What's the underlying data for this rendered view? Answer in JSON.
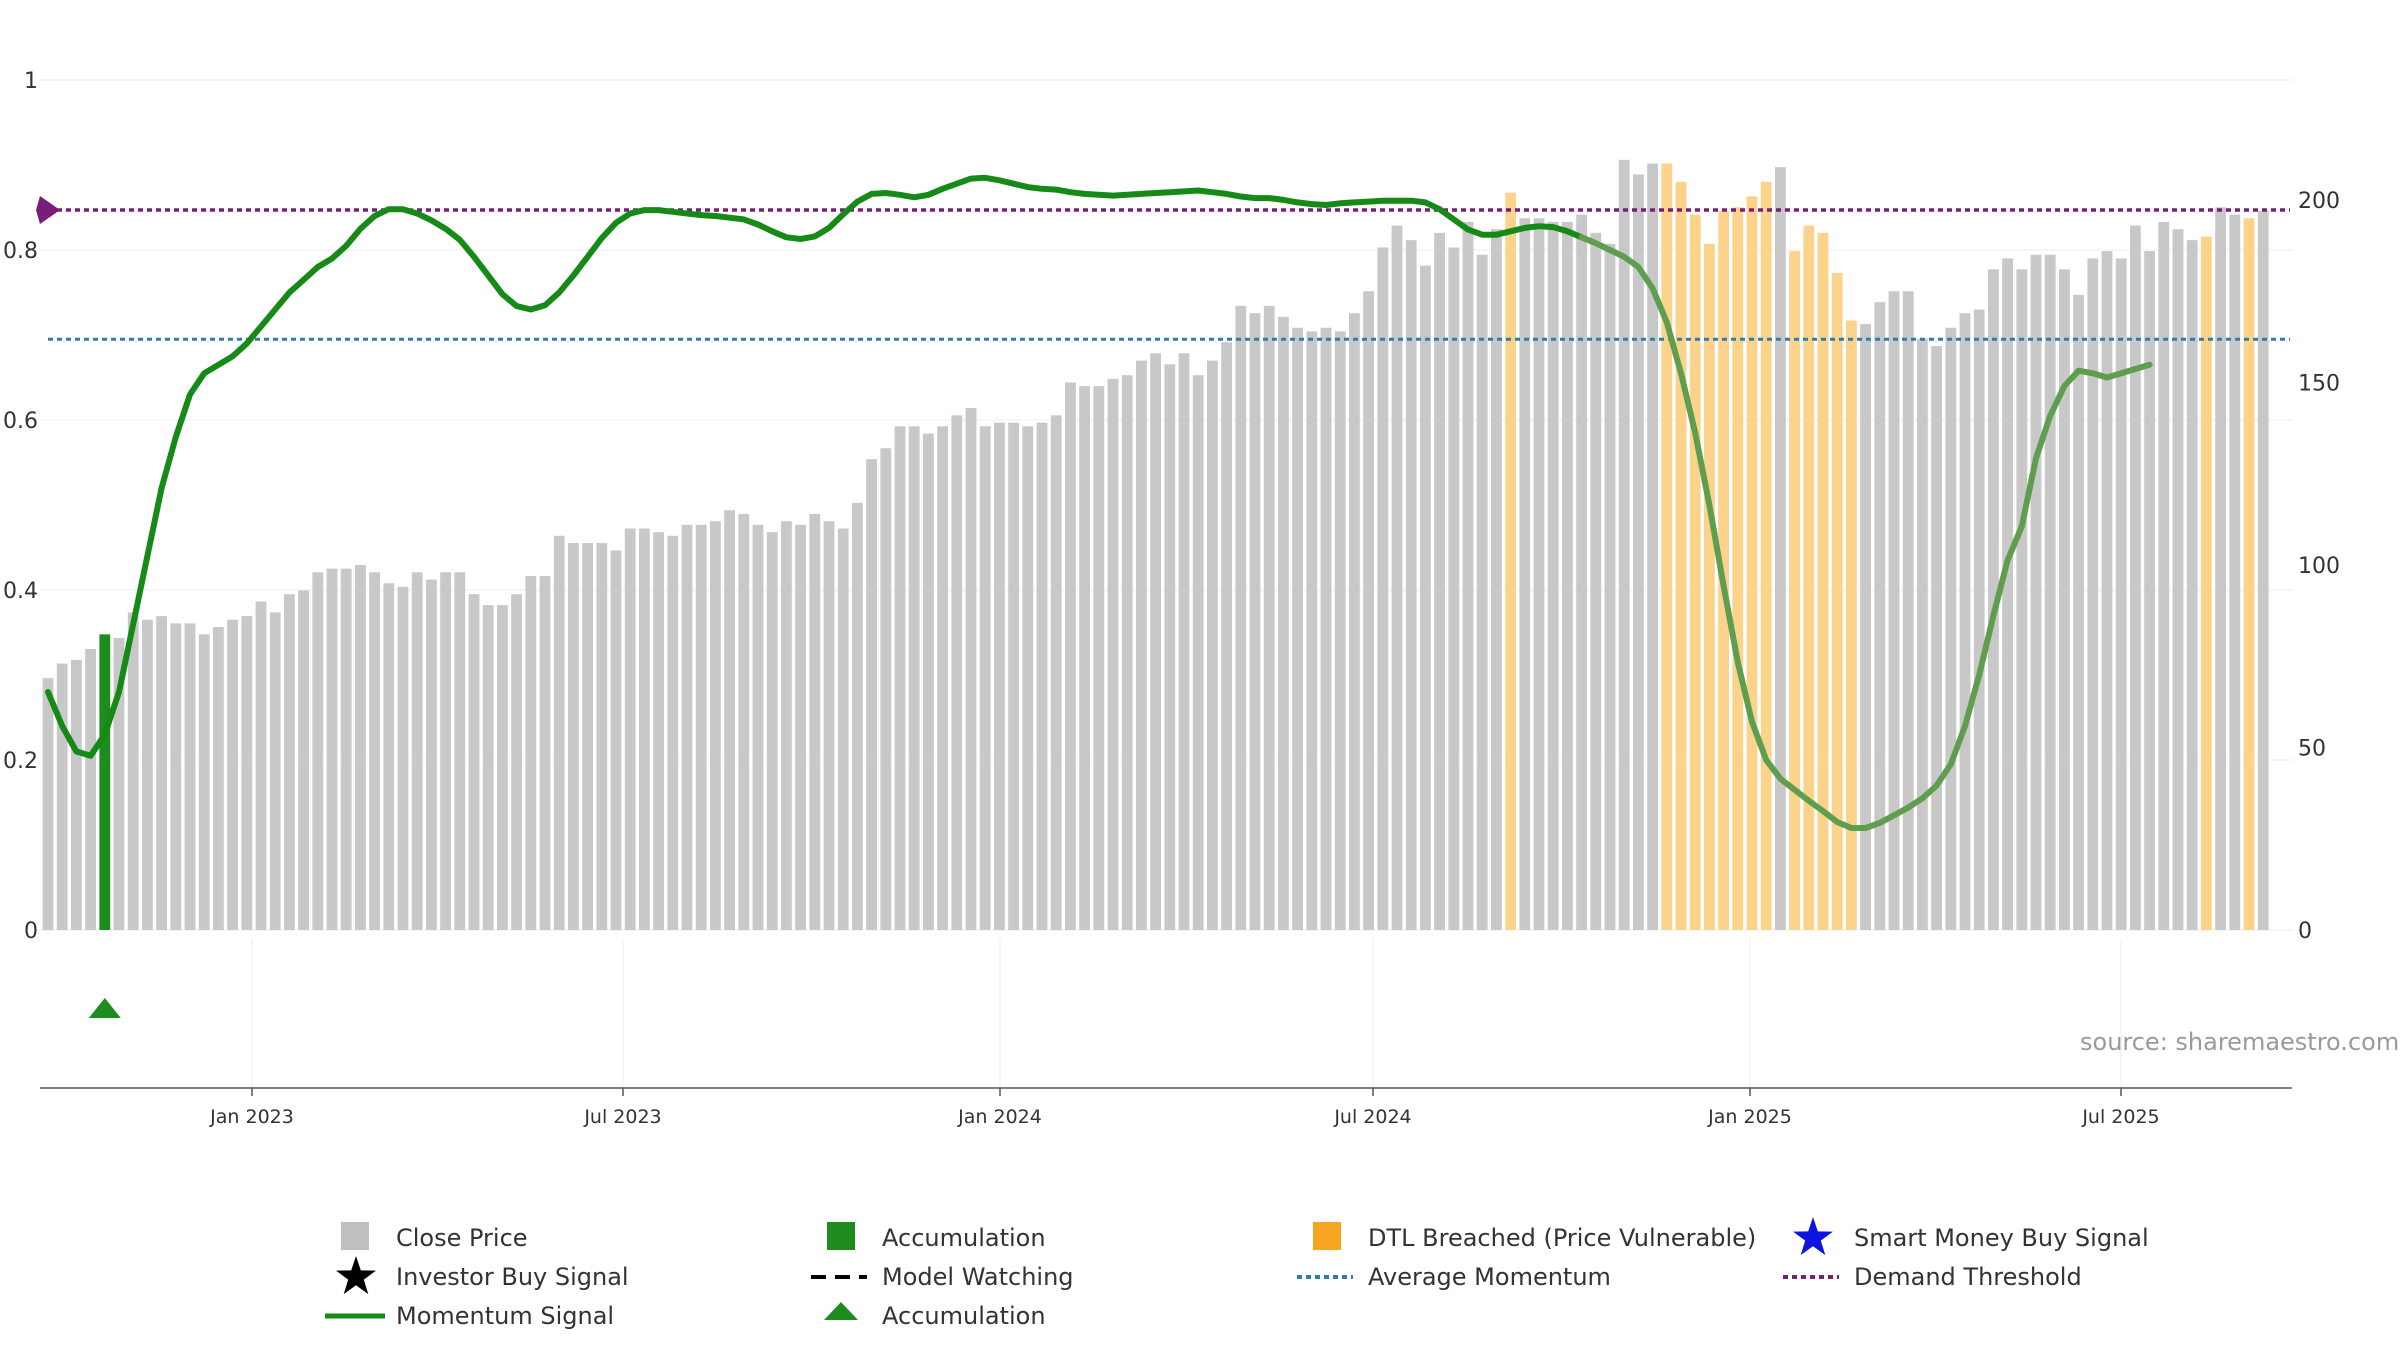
{
  "chart_data": {
    "type": "bar",
    "x_ticks": [
      "Jan 2023",
      "Jul 2023",
      "Jan 2024",
      "Jul 2024",
      "Jan 2025",
      "Jul 2025"
    ],
    "left_axis": {
      "ticks": [
        "0",
        "0.2",
        "0.4",
        "0.6",
        "0.8",
        "1"
      ],
      "range": [
        0,
        1
      ]
    },
    "right_axis": {
      "ticks": [
        "0",
        "50",
        "100",
        "150",
        "200"
      ],
      "range": [
        0,
        233
      ]
    },
    "close_price": [
      69,
      73,
      74,
      77,
      81,
      80,
      87,
      85,
      86,
      84,
      84,
      81,
      83,
      85,
      86,
      90,
      87,
      92,
      93,
      98,
      99,
      99,
      100,
      98,
      95,
      94,
      98,
      96,
      98,
      98,
      92,
      89,
      89,
      92,
      97,
      97,
      108,
      106,
      106,
      106,
      104,
      110,
      110,
      109,
      108,
      111,
      111,
      112,
      115,
      114,
      111,
      109,
      112,
      111,
      114,
      112,
      110,
      117,
      129,
      132,
      138,
      138,
      136,
      138,
      141,
      143,
      138,
      139,
      139,
      138,
      139,
      141,
      150,
      149,
      149,
      151,
      152,
      156,
      158,
      155,
      158,
      152,
      156,
      161,
      171,
      169,
      171,
      168,
      165,
      164,
      165,
      164,
      169,
      175,
      187,
      193,
      189,
      182,
      191,
      187,
      194,
      185,
      192,
      202,
      195,
      195,
      194,
      194,
      196,
      191,
      188,
      211,
      207,
      210,
      210,
      205,
      196,
      188,
      197,
      198,
      201,
      205,
      209,
      186,
      193,
      191,
      180,
      167,
      166,
      172,
      175,
      175,
      162,
      160,
      165,
      169,
      170,
      181,
      184,
      181,
      185,
      185,
      181,
      174,
      184,
      186,
      184,
      193,
      186,
      194,
      192,
      189,
      190,
      198,
      196,
      195,
      197
    ],
    "dtl_breached_index": [
      103,
      114,
      115,
      116,
      117,
      118,
      119,
      120,
      121,
      123,
      124,
      125,
      126,
      127,
      152,
      155
    ],
    "accumulation_bar_index": 4,
    "accumulation_marker_index": 4,
    "momentum_signal": [
      0.28,
      0.24,
      0.21,
      0.205,
      0.23,
      0.28,
      0.36,
      0.44,
      0.52,
      0.58,
      0.63,
      0.655,
      0.665,
      0.675,
      0.69,
      0.71,
      0.73,
      0.75,
      0.765,
      0.78,
      0.79,
      0.805,
      0.825,
      0.84,
      0.848,
      0.848,
      0.843,
      0.835,
      0.825,
      0.812,
      0.792,
      0.77,
      0.748,
      0.734,
      0.73,
      0.735,
      0.75,
      0.77,
      0.792,
      0.814,
      0.832,
      0.843,
      0.847,
      0.847,
      0.845,
      0.843,
      0.841,
      0.84,
      0.838,
      0.836,
      0.83,
      0.822,
      0.815,
      0.813,
      0.816,
      0.826,
      0.842,
      0.857,
      0.866,
      0.867,
      0.865,
      0.862,
      0.865,
      0.872,
      0.878,
      0.884,
      0.885,
      0.882,
      0.878,
      0.874,
      0.872,
      0.871,
      0.868,
      0.866,
      0.865,
      0.864,
      0.865,
      0.866,
      0.867,
      0.868,
      0.869,
      0.87,
      0.868,
      0.866,
      0.863,
      0.861,
      0.861,
      0.859,
      0.856,
      0.854,
      0.853,
      0.855,
      0.856,
      0.857,
      0.858,
      0.858,
      0.858,
      0.856,
      0.848,
      0.836,
      0.824,
      0.818,
      0.818,
      0.822,
      0.826,
      0.828,
      0.827,
      0.822,
      0.815,
      0.808,
      0.8,
      0.792,
      0.78,
      0.755,
      0.715,
      0.655,
      0.585,
      0.5,
      0.405,
      0.315,
      0.245,
      0.2,
      0.178,
      0.165,
      0.152,
      0.14,
      0.127,
      0.12,
      0.12,
      0.126,
      0.135,
      0.144,
      0.155,
      0.17,
      0.195,
      0.24,
      0.3,
      0.37,
      0.435,
      0.475,
      0.555,
      0.605,
      0.64,
      0.658,
      0.655,
      0.65,
      0.655,
      0.66,
      0.665
    ],
    "average_momentum": 0.695,
    "demand_threshold": 0.847,
    "source_text": "source: sharemaestro.com",
    "legend": [
      {
        "label": "Close Price",
        "symbol": "grey-square",
        "color": "#bfbfbf"
      },
      {
        "label": "Accumulation",
        "symbol": "green-square",
        "color": "#1e8c1e"
      },
      {
        "label": "DTL Breached (Price Vulnerable)",
        "symbol": "orange-square",
        "color": "#f5a623"
      },
      {
        "label": "Smart Money Buy Signal",
        "symbol": "blue-star",
        "color": "#0d14e0"
      },
      {
        "label": "Investor Buy Signal",
        "symbol": "black-star",
        "color": "#000000"
      },
      {
        "label": "Model Watching",
        "symbol": "black-dashed-line",
        "color": "#000000"
      },
      {
        "label": "Average Momentum",
        "symbol": "blue-dotted-line",
        "color": "#2e7ea8"
      },
      {
        "label": "Demand Threshold",
        "symbol": "purple-dotted-line",
        "color": "#7a1d7a"
      },
      {
        "label": "Momentum Signal",
        "symbol": "green-line",
        "color": "#168a16"
      },
      {
        "label": "Accumulation",
        "symbol": "green-triangle",
        "color": "#1e8c1e"
      }
    ],
    "colors": {
      "close_price": "#c8c8c8",
      "dtl_breached": "#fcd38a",
      "accumulation": "#1e8c1e",
      "momentum": "#168a16",
      "momentum_fading": "#5e9e4e",
      "average_momentum": "#2e7ea8",
      "demand_threshold": "#7a1d7a"
    }
  }
}
